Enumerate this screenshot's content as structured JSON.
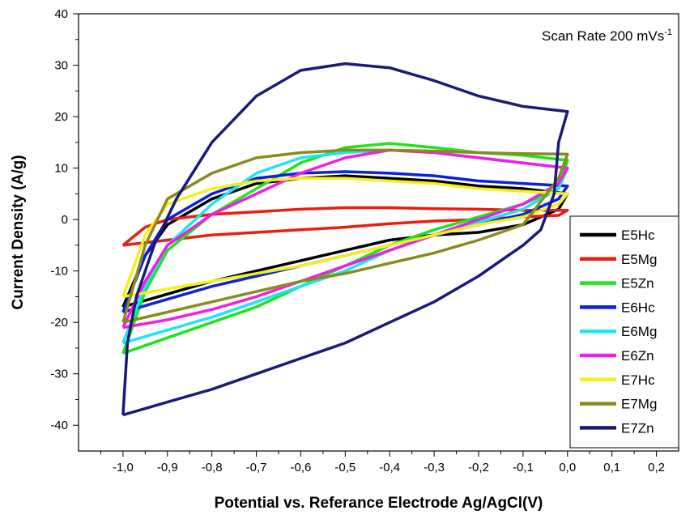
{
  "chart_data": {
    "type": "line",
    "title": "",
    "annotation": {
      "main": "Scan Rate 200 mVs",
      "superscript": "-1"
    },
    "xlabel": "Potential vs. Referance Electrode Ag/AgCl(V)",
    "ylabel": "Current Density (A/g)",
    "xlim": [
      -1.1,
      0.25
    ],
    "ylim": [
      -45,
      40
    ],
    "xticks": [
      -1.0,
      -0.9,
      -0.8,
      -0.7,
      -0.6,
      -0.5,
      -0.4,
      -0.3,
      -0.2,
      -0.1,
      0.0,
      0.1,
      0.2
    ],
    "xtick_labels": [
      "-1,0",
      "-0,9",
      "-0,8",
      "-0,7",
      "-0,6",
      "-0,5",
      "-0,4",
      "-0,3",
      "-0,2",
      "-0,1",
      "0,0",
      "0,1",
      "0,2"
    ],
    "yticks": [
      -40,
      -30,
      -20,
      -10,
      0,
      10,
      20,
      30,
      40
    ],
    "ytick_labels": [
      "-40",
      "-30",
      "-20",
      "-10",
      "0",
      "10",
      "20",
      "30",
      "40"
    ],
    "grid": false,
    "legend_position": "bottom-right",
    "series": [
      {
        "name": "E5Hc",
        "color": "#000000",
        "points": [
          [
            -1.0,
            -17
          ],
          [
            -0.95,
            -7
          ],
          [
            -0.9,
            -1
          ],
          [
            -0.8,
            4
          ],
          [
            -0.7,
            7
          ],
          [
            -0.6,
            8
          ],
          [
            -0.5,
            8.5
          ],
          [
            -0.4,
            8
          ],
          [
            -0.3,
            7.5
          ],
          [
            -0.2,
            6.5
          ],
          [
            -0.1,
            6
          ],
          [
            0.0,
            5
          ],
          [
            -0.02,
            2
          ],
          [
            -0.1,
            -1
          ],
          [
            -0.2,
            -2.5
          ],
          [
            -0.3,
            -3
          ],
          [
            -0.4,
            -4
          ],
          [
            -0.5,
            -6
          ],
          [
            -0.6,
            -8
          ],
          [
            -0.7,
            -10
          ],
          [
            -0.8,
            -12
          ],
          [
            -0.9,
            -14.5
          ],
          [
            -1.0,
            -17
          ]
        ]
      },
      {
        "name": "E5Mg",
        "color": "#ee1c0e",
        "points": [
          [
            -1.0,
            -5
          ],
          [
            -0.95,
            -1.5
          ],
          [
            -0.9,
            0
          ],
          [
            -0.8,
            1
          ],
          [
            -0.7,
            1.5
          ],
          [
            -0.6,
            2
          ],
          [
            -0.5,
            2.3
          ],
          [
            -0.4,
            2.3
          ],
          [
            -0.3,
            2.1
          ],
          [
            -0.2,
            2
          ],
          [
            -0.1,
            1.8
          ],
          [
            0.0,
            1.8
          ],
          [
            -0.02,
            0.8
          ],
          [
            -0.1,
            0.5
          ],
          [
            -0.2,
            0
          ],
          [
            -0.3,
            -0.3
          ],
          [
            -0.4,
            -0.8
          ],
          [
            -0.5,
            -1.5
          ],
          [
            -0.6,
            -2
          ],
          [
            -0.7,
            -2.5
          ],
          [
            -0.8,
            -3
          ],
          [
            -0.9,
            -4
          ],
          [
            -1.0,
            -5
          ]
        ]
      },
      {
        "name": "E5Zn",
        "color": "#1de41a",
        "points": [
          [
            -1.0,
            -26
          ],
          [
            -0.95,
            -14
          ],
          [
            -0.9,
            -6
          ],
          [
            -0.8,
            1
          ],
          [
            -0.7,
            6
          ],
          [
            -0.6,
            11
          ],
          [
            -0.5,
            14
          ],
          [
            -0.4,
            14.8
          ],
          [
            -0.3,
            14
          ],
          [
            -0.2,
            13
          ],
          [
            -0.1,
            12.5
          ],
          [
            0.0,
            11.5
          ],
          [
            -0.02,
            6
          ],
          [
            -0.1,
            3
          ],
          [
            -0.2,
            0.5
          ],
          [
            -0.3,
            -2
          ],
          [
            -0.4,
            -5
          ],
          [
            -0.5,
            -9
          ],
          [
            -0.6,
            -13
          ],
          [
            -0.7,
            -17
          ],
          [
            -0.8,
            -20
          ],
          [
            -0.9,
            -23
          ],
          [
            -1.0,
            -26
          ]
        ]
      },
      {
        "name": "E6Hc",
        "color": "#0b22d8",
        "points": [
          [
            -1.0,
            -18
          ],
          [
            -0.95,
            -7
          ],
          [
            -0.9,
            0
          ],
          [
            -0.8,
            5
          ],
          [
            -0.7,
            8
          ],
          [
            -0.6,
            9
          ],
          [
            -0.5,
            9.3
          ],
          [
            -0.4,
            9
          ],
          [
            -0.3,
            8.5
          ],
          [
            -0.2,
            7.5
          ],
          [
            -0.1,
            7
          ],
          [
            0.0,
            6.5
          ],
          [
            -0.02,
            4
          ],
          [
            -0.1,
            1
          ],
          [
            -0.2,
            -1
          ],
          [
            -0.3,
            -3
          ],
          [
            -0.4,
            -5
          ],
          [
            -0.5,
            -7
          ],
          [
            -0.6,
            -9
          ],
          [
            -0.7,
            -11
          ],
          [
            -0.8,
            -13
          ],
          [
            -0.9,
            -15.5
          ],
          [
            -1.0,
            -18
          ]
        ]
      },
      {
        "name": "E6Mg",
        "color": "#1ae6f2",
        "points": [
          [
            -1.0,
            -24
          ],
          [
            -0.95,
            -13
          ],
          [
            -0.9,
            -5
          ],
          [
            -0.8,
            3
          ],
          [
            -0.7,
            9
          ],
          [
            -0.6,
            12
          ],
          [
            -0.5,
            13
          ],
          [
            -0.4,
            13.5
          ],
          [
            -0.3,
            13
          ],
          [
            -0.2,
            12
          ],
          [
            -0.1,
            11
          ],
          [
            0.0,
            10
          ],
          [
            -0.02,
            6
          ],
          [
            -0.1,
            2
          ],
          [
            -0.2,
            -0.5
          ],
          [
            -0.3,
            -3
          ],
          [
            -0.4,
            -6
          ],
          [
            -0.5,
            -10
          ],
          [
            -0.6,
            -13
          ],
          [
            -0.7,
            -16
          ],
          [
            -0.8,
            -19
          ],
          [
            -0.9,
            -21.5
          ],
          [
            -1.0,
            -24
          ]
        ]
      },
      {
        "name": "E6Zn",
        "color": "#f01ee8",
        "points": [
          [
            -1.0,
            -21
          ],
          [
            -0.95,
            -12
          ],
          [
            -0.9,
            -5
          ],
          [
            -0.8,
            1
          ],
          [
            -0.7,
            5
          ],
          [
            -0.6,
            9
          ],
          [
            -0.5,
            12
          ],
          [
            -0.4,
            13.5
          ],
          [
            -0.3,
            13
          ],
          [
            -0.2,
            12
          ],
          [
            -0.1,
            11
          ],
          [
            0.0,
            10
          ],
          [
            -0.02,
            7
          ],
          [
            -0.1,
            3
          ],
          [
            -0.2,
            0
          ],
          [
            -0.3,
            -3
          ],
          [
            -0.4,
            -6
          ],
          [
            -0.5,
            -9
          ],
          [
            -0.6,
            -12
          ],
          [
            -0.7,
            -15
          ],
          [
            -0.8,
            -17.5
          ],
          [
            -0.9,
            -19.5
          ],
          [
            -1.0,
            -21
          ]
        ]
      },
      {
        "name": "E7Hc",
        "color": "#f5f01a",
        "points": [
          [
            -1.0,
            -15
          ],
          [
            -0.95,
            -3
          ],
          [
            -0.9,
            3
          ],
          [
            -0.8,
            6
          ],
          [
            -0.7,
            7.5
          ],
          [
            -0.6,
            8
          ],
          [
            -0.5,
            8
          ],
          [
            -0.4,
            7.5
          ],
          [
            -0.3,
            7
          ],
          [
            -0.2,
            6
          ],
          [
            -0.1,
            5.5
          ],
          [
            0.0,
            5
          ],
          [
            -0.02,
            3
          ],
          [
            -0.1,
            0.5
          ],
          [
            -0.2,
            -1
          ],
          [
            -0.3,
            -3
          ],
          [
            -0.4,
            -5
          ],
          [
            -0.5,
            -7
          ],
          [
            -0.6,
            -9
          ],
          [
            -0.7,
            -10.5
          ],
          [
            -0.8,
            -12
          ],
          [
            -0.9,
            -13.5
          ],
          [
            -1.0,
            -15
          ]
        ]
      },
      {
        "name": "E7Mg",
        "color": "#8a8a1e",
        "points": [
          [
            -1.0,
            -20
          ],
          [
            -0.95,
            -5
          ],
          [
            -0.9,
            4
          ],
          [
            -0.8,
            9
          ],
          [
            -0.7,
            12
          ],
          [
            -0.6,
            13
          ],
          [
            -0.5,
            13.5
          ],
          [
            -0.4,
            13.5
          ],
          [
            -0.3,
            13.3
          ],
          [
            -0.2,
            13
          ],
          [
            -0.1,
            12.8
          ],
          [
            0.0,
            12.7
          ],
          [
            -0.02,
            8
          ],
          [
            -0.1,
            -1
          ],
          [
            -0.2,
            -4
          ],
          [
            -0.3,
            -6.5
          ],
          [
            -0.4,
            -8.5
          ],
          [
            -0.5,
            -10.5
          ],
          [
            -0.6,
            -12
          ],
          [
            -0.7,
            -14
          ],
          [
            -0.8,
            -16
          ],
          [
            -0.9,
            -18
          ],
          [
            -1.0,
            -20
          ]
        ]
      },
      {
        "name": "E7Zn",
        "color": "#1a1a7a",
        "points": [
          [
            -1.0,
            -38
          ],
          [
            -0.99,
            -24
          ],
          [
            -0.97,
            -15
          ],
          [
            -0.93,
            -5
          ],
          [
            -0.88,
            4
          ],
          [
            -0.8,
            15
          ],
          [
            -0.7,
            24
          ],
          [
            -0.6,
            29
          ],
          [
            -0.5,
            30.3
          ],
          [
            -0.4,
            29.5
          ],
          [
            -0.3,
            27
          ],
          [
            -0.2,
            24
          ],
          [
            -0.1,
            22
          ],
          [
            0.0,
            21
          ],
          [
            -0.02,
            15
          ],
          [
            -0.03,
            5
          ],
          [
            -0.06,
            -2
          ],
          [
            -0.1,
            -5
          ],
          [
            -0.2,
            -11
          ],
          [
            -0.3,
            -16
          ],
          [
            -0.4,
            -20
          ],
          [
            -0.5,
            -24
          ],
          [
            -0.6,
            -27
          ],
          [
            -0.7,
            -30
          ],
          [
            -0.8,
            -33
          ],
          [
            -0.9,
            -35.5
          ],
          [
            -1.0,
            -38
          ]
        ]
      }
    ]
  }
}
